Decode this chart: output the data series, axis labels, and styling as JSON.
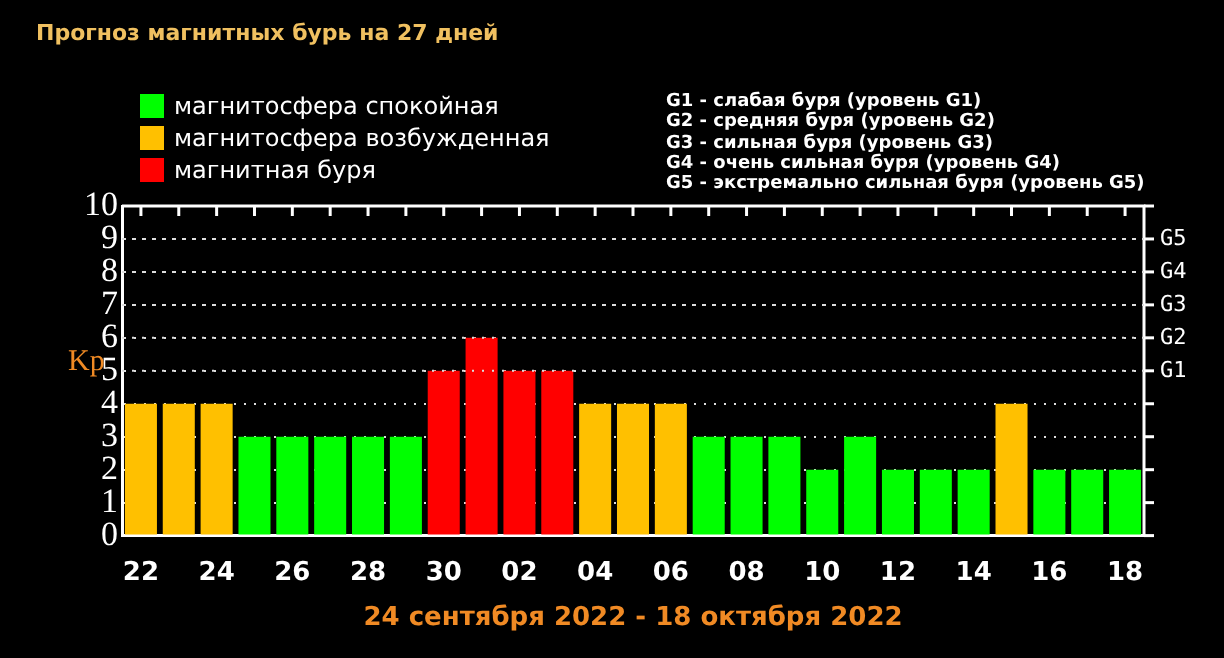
{
  "chart_data": {
    "type": "bar",
    "title": "Прогноз магнитных бурь на 27 дней",
    "xlabel": "24 сентября 2022 - 18 октября 2022",
    "ylabel": "Kp",
    "categories": [
      "22",
      null,
      "24",
      null,
      "26",
      null,
      "28",
      null,
      "30",
      null,
      "02",
      null,
      "04",
      null,
      "06",
      null,
      "08",
      null,
      "10",
      null,
      "12",
      null,
      "14",
      null,
      "16",
      null,
      "18"
    ],
    "series": [
      {
        "name": "магнитосфера спокойная",
        "color": "#00ff00",
        "values": [
          null,
          null,
          null,
          3,
          3,
          3,
          3,
          3,
          null,
          null,
          null,
          null,
          null,
          null,
          null,
          3,
          3,
          3,
          2,
          3,
          2,
          2,
          2,
          null,
          2,
          2,
          2
        ]
      },
      {
        "name": "магнитосфера возбужденная",
        "color": "#ffc000",
        "values": [
          4,
          4,
          4,
          null,
          null,
          null,
          null,
          null,
          null,
          null,
          null,
          null,
          4,
          4,
          4,
          null,
          null,
          null,
          null,
          null,
          null,
          null,
          null,
          4,
          null,
          null,
          null
        ]
      },
      {
        "name": "магнитная буря",
        "color": "#ff0000",
        "values": [
          null,
          null,
          null,
          null,
          null,
          null,
          null,
          null,
          5,
          6,
          5,
          5,
          null,
          null,
          null,
          null,
          null,
          null,
          null,
          null,
          null,
          null,
          null,
          null,
          null,
          null,
          null
        ]
      }
    ],
    "stacked": true,
    "ylim": [
      0,
      10
    ],
    "yticks": [
      0,
      1,
      2,
      3,
      4,
      5,
      6,
      7,
      8,
      9,
      10
    ],
    "ref_lines": [
      {
        "axis": "y",
        "value": 5,
        "label": "G1"
      },
      {
        "axis": "y",
        "value": 6,
        "label": "G2"
      },
      {
        "axis": "y",
        "value": 7,
        "label": "G3"
      },
      {
        "axis": "y",
        "value": 8,
        "label": "G4"
      },
      {
        "axis": "y",
        "value": 9,
        "label": "G5"
      }
    ],
    "grid": "y",
    "legend": "top left",
    "annotations": [
      "G1 - слабая буря (уровень G1)",
      "G2 - средняя буря (уровень G2)",
      "G3 - сильная буря (уровень G3)",
      "G4 - очень сильная буря (уровень G4)",
      "G5 - экстремально сильная буря (уровень G5)"
    ]
  }
}
